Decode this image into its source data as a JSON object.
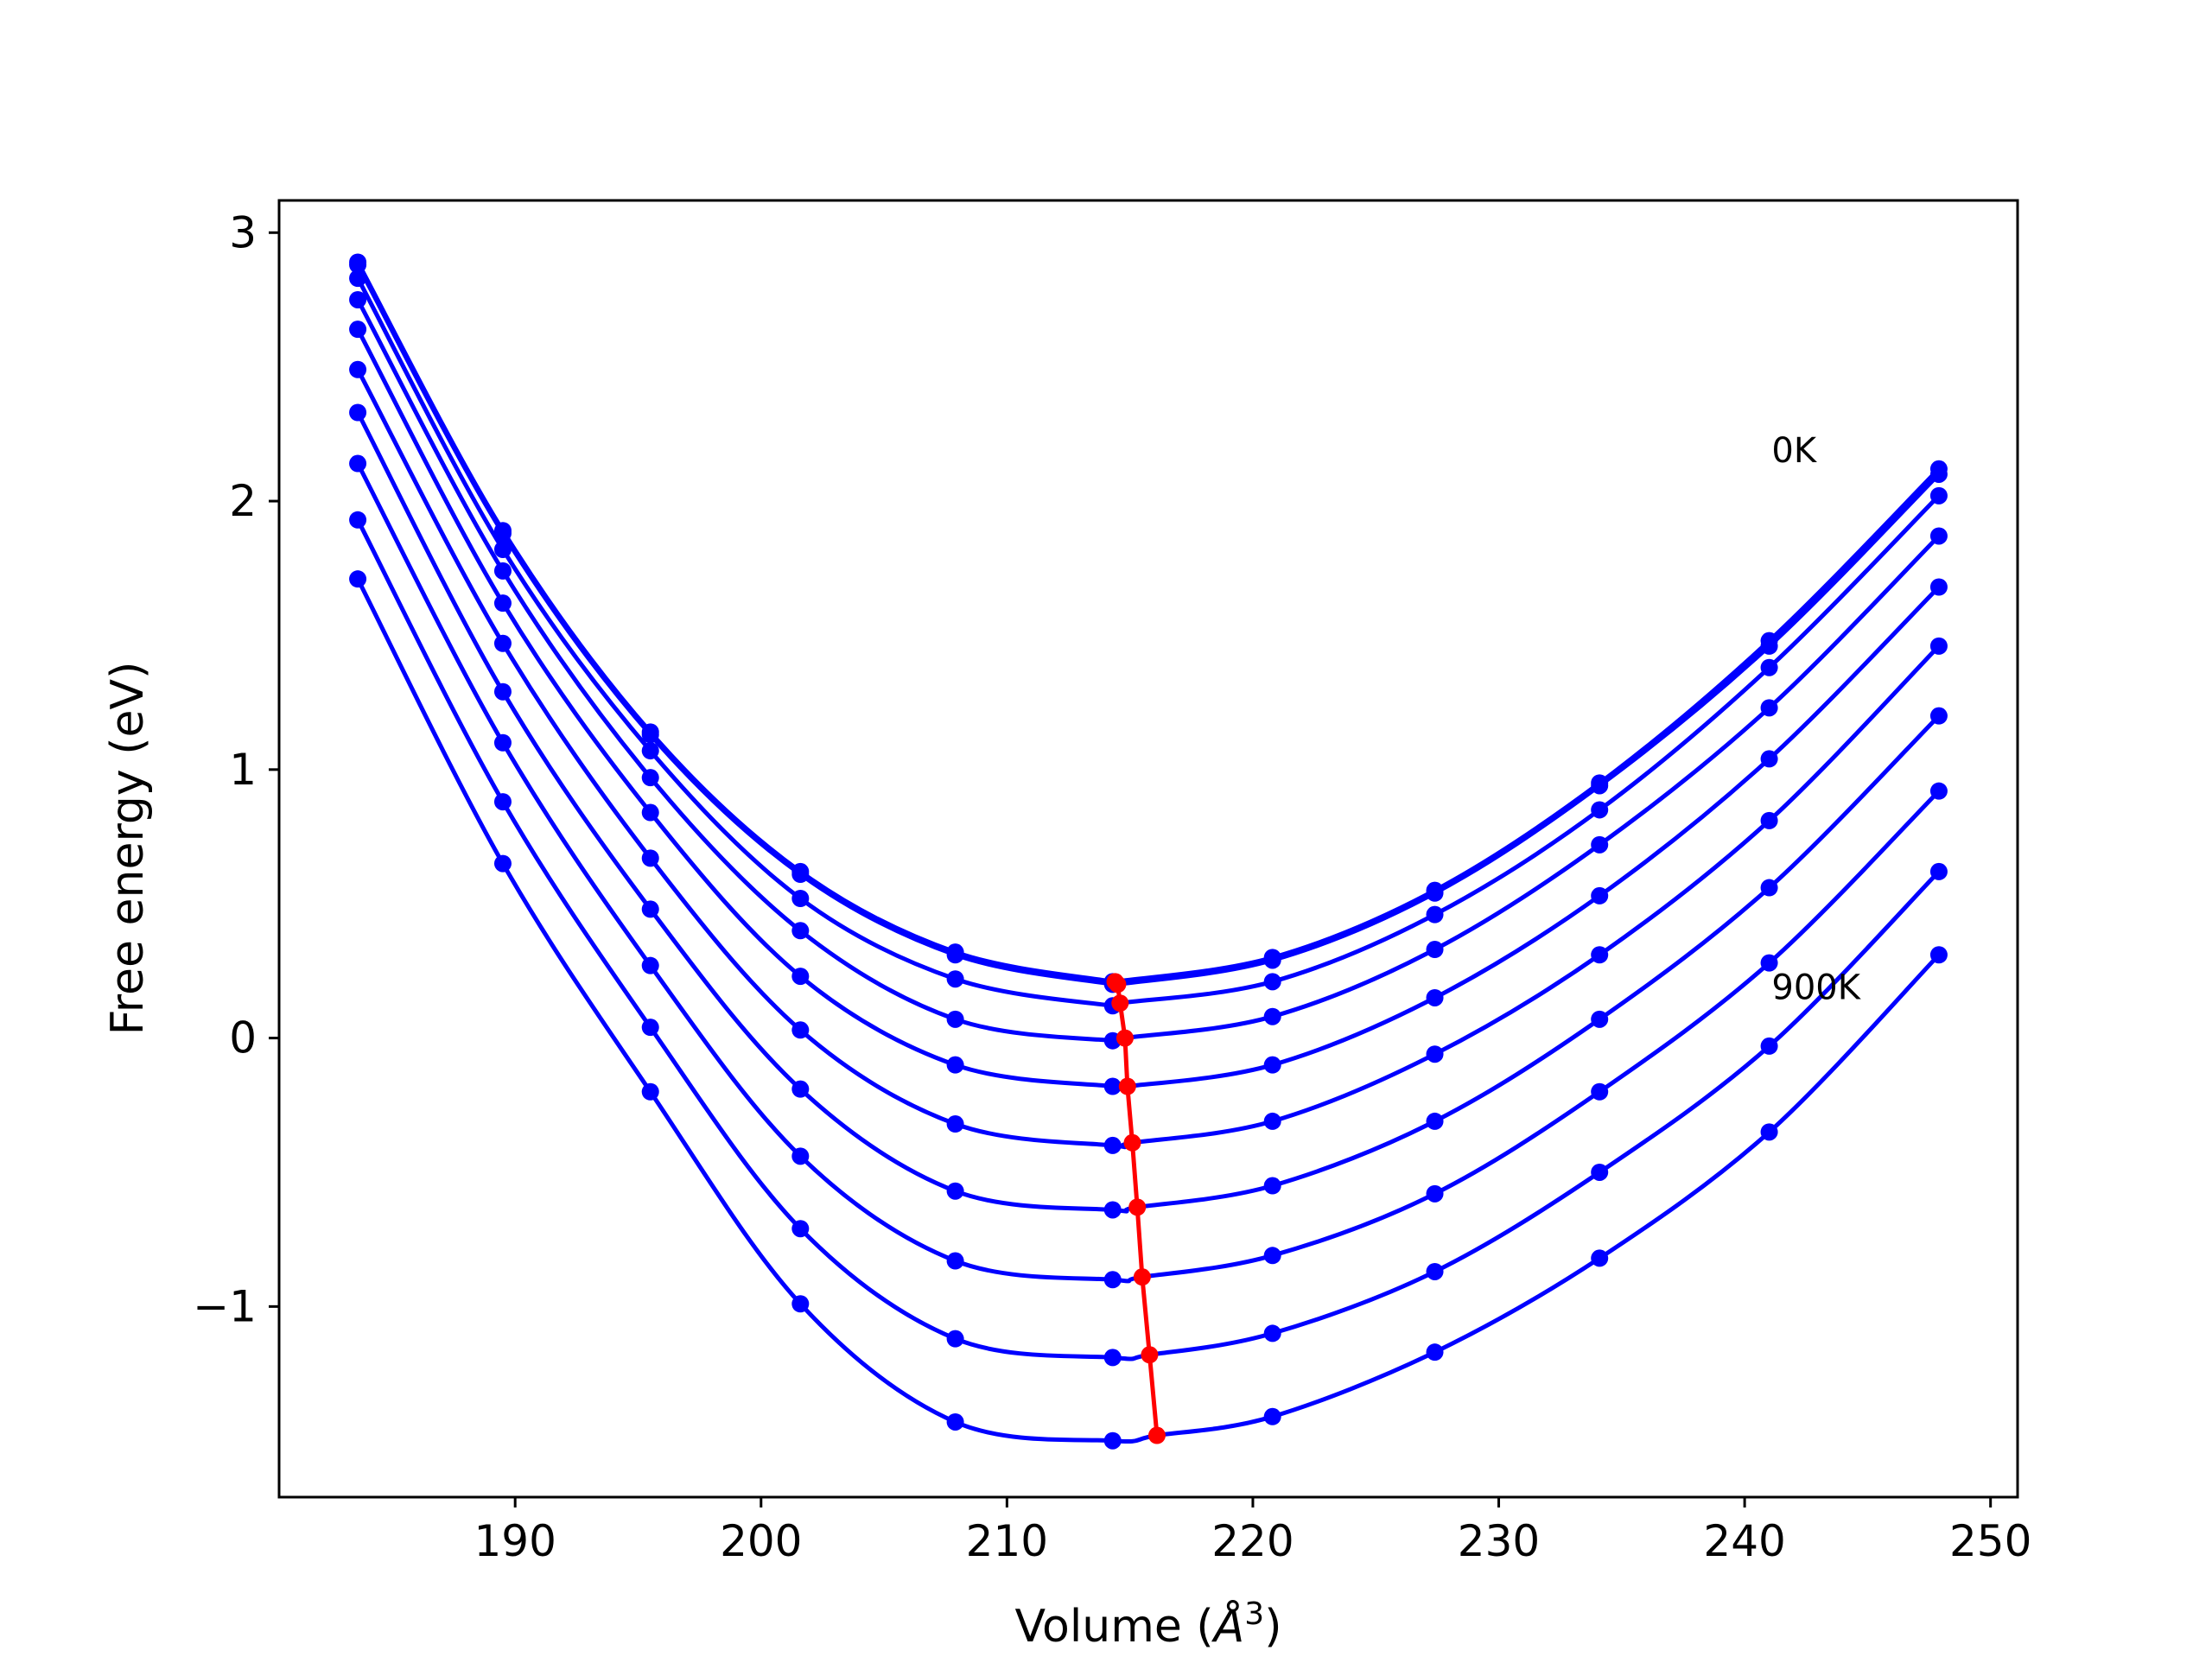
{
  "chart_data": {
    "type": "line",
    "xlabel": "Volume (",
    "xlabel_symbol": "Å",
    "xlabel_exp": "3",
    "xlabel_close": ")",
    "ylabel": "Free energy (eV)",
    "xlim": [
      180.4,
      251.1
    ],
    "ylim": [
      -1.71,
      3.12
    ],
    "xticks": [
      190,
      200,
      210,
      220,
      230,
      240,
      250
    ],
    "xtick_labels": [
      "190",
      "200",
      "210",
      "220",
      "230",
      "240",
      "250"
    ],
    "yticks": [
      -1,
      0,
      1,
      2,
      3
    ],
    "ytick_labels": [
      "−1",
      "0",
      "1",
      "2",
      "3"
    ],
    "grid": false,
    "annotations": [
      {
        "text": "0K",
        "x": 241.1,
        "y": 2.19
      },
      {
        "text": "900K",
        "x": 241.1,
        "y": 0.19
      }
    ],
    "x": [
      183.6,
      189.5,
      195.5,
      201.6,
      207.9,
      214.3,
      220.8,
      227.4,
      234.1,
      241.0,
      247.9
    ],
    "series": [
      {
        "values": [
          2.89,
          1.89,
          1.14,
          0.62,
          0.32,
          0.21,
          0.3,
          0.55,
          0.95,
          1.48,
          2.12
        ],
        "min_x": 214.4,
        "min_y": 0.21
      },
      {
        "values": [
          2.88,
          1.88,
          1.13,
          0.61,
          0.31,
          0.2,
          0.29,
          0.54,
          0.94,
          1.46,
          2.1
        ],
        "min_x": 214.5,
        "min_y": 0.2
      },
      {
        "values": [
          2.83,
          1.82,
          1.07,
          0.52,
          0.22,
          0.12,
          0.21,
          0.46,
          0.85,
          1.38,
          2.02
        ],
        "min_x": 214.6,
        "min_y": 0.13
      },
      {
        "values": [
          2.75,
          1.74,
          0.97,
          0.4,
          0.07,
          -0.01,
          0.08,
          0.33,
          0.72,
          1.23,
          1.87
        ],
        "min_x": 214.8,
        "min_y": 0.0
      },
      {
        "values": [
          2.64,
          1.62,
          0.84,
          0.23,
          -0.1,
          -0.18,
          -0.1,
          0.15,
          0.53,
          1.04,
          1.68
        ],
        "min_x": 214.9,
        "min_y": -0.18
      },
      {
        "values": [
          2.49,
          1.47,
          0.67,
          0.03,
          -0.32,
          -0.4,
          -0.31,
          -0.06,
          0.31,
          0.81,
          1.46
        ],
        "min_x": 215.1,
        "min_y": -0.39
      },
      {
        "values": [
          2.33,
          1.29,
          0.48,
          -0.19,
          -0.57,
          -0.64,
          -0.55,
          -0.31,
          0.07,
          0.56,
          1.2
        ],
        "min_x": 215.3,
        "min_y": -0.63
      },
      {
        "values": [
          2.14,
          1.1,
          0.27,
          -0.44,
          -0.83,
          -0.9,
          -0.81,
          -0.58,
          -0.2,
          0.28,
          0.92
        ],
        "min_x": 215.5,
        "min_y": -0.89
      },
      {
        "values": [
          1.93,
          0.88,
          0.04,
          -0.71,
          -1.12,
          -1.19,
          -1.1,
          -0.87,
          -0.5,
          -0.03,
          0.62
        ],
        "min_x": 215.8,
        "min_y": -1.18
      },
      {
        "values": [
          1.71,
          0.65,
          -0.2,
          -0.99,
          -1.43,
          -1.5,
          -1.41,
          -1.17,
          -0.82,
          -0.35,
          0.31
        ],
        "min_x": 216.1,
        "min_y": -1.48
      }
    ],
    "colors": {
      "curves": "#0000ff",
      "points": "#0000ff",
      "minima": "#ff0000"
    }
  }
}
